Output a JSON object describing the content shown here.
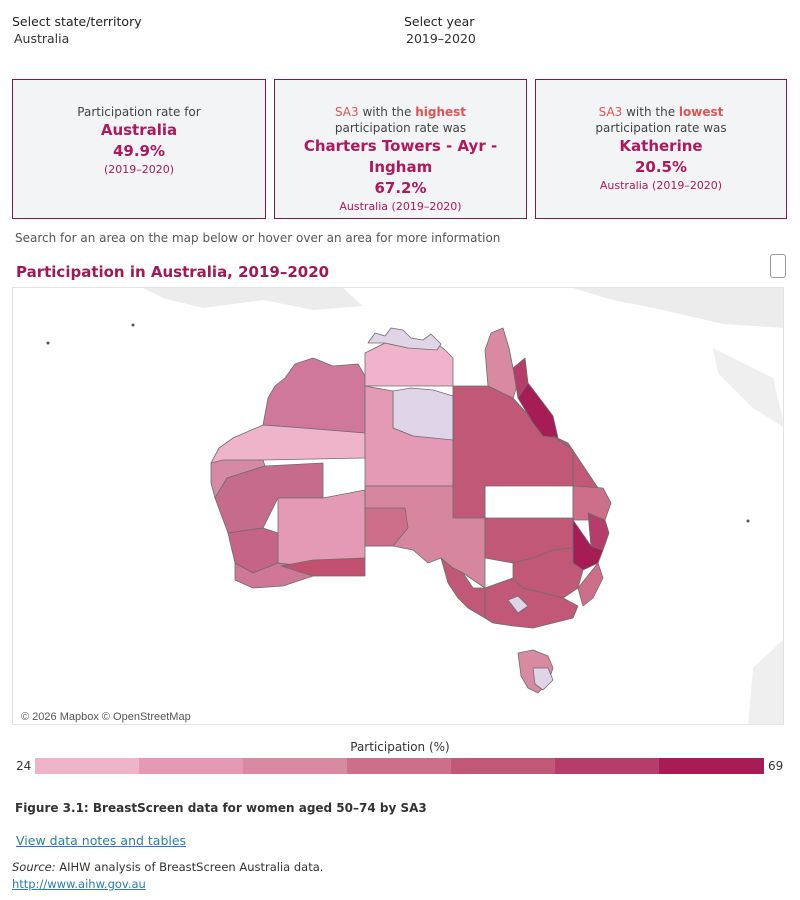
{
  "filters": {
    "state_label": "Select state/territory",
    "state_value": "Australia",
    "year_label": "Select year",
    "year_value": "2019–2020"
  },
  "card_overall": {
    "line1": "Participation rate for",
    "place": "Australia",
    "rate": "49.9%",
    "period": "(2019–2020)"
  },
  "card_highest": {
    "sa3": "SA3",
    "with_the": " with the ",
    "word": "highest",
    "line2": "participation rate was",
    "place": "Charters Towers - Ayr - Ingham",
    "rate": "67.2%",
    "scope": "Australia (2019–2020)"
  },
  "card_lowest": {
    "sa3": "SA3",
    "with_the": " with the ",
    "word": "lowest",
    "line2": "participation rate was",
    "place": "Katherine",
    "rate": "20.5%",
    "scope": "Australia (2019–2020)"
  },
  "instruction": "Search for an area on the map below or hover over an area for more information",
  "map": {
    "title": "Participation in Australia, 2019–2020",
    "attribution": "© 2026 Mapbox © OpenStreetMap",
    "region_fill_levels_percent": [
      24,
      30.4,
      36.9,
      43.3,
      49.7,
      56.1,
      62.6,
      69
    ]
  },
  "legend": {
    "title": "Participation (%)",
    "min": "24",
    "max": "69",
    "colors": [
      "#efb3ca",
      "#e49ab4",
      "#d98aa3",
      "#cd6e8b",
      "#c25878",
      "#b53d69",
      "#a61d56"
    ]
  },
  "figure_caption": "Figure 3.1: BreastScreen data for women aged 50–74 by SA3",
  "data_notes_link": "View data notes and tables",
  "source_label": "Source:",
  "source_text": " AIHW analysis of BreastScreen Australia data.",
  "source_url": "http://www.aihw.gov.au",
  "colors": {
    "accent": "#b0185c",
    "highlight": "#e05353",
    "card_border": "#7a1c4a",
    "land_low": "#e0d5e6"
  }
}
